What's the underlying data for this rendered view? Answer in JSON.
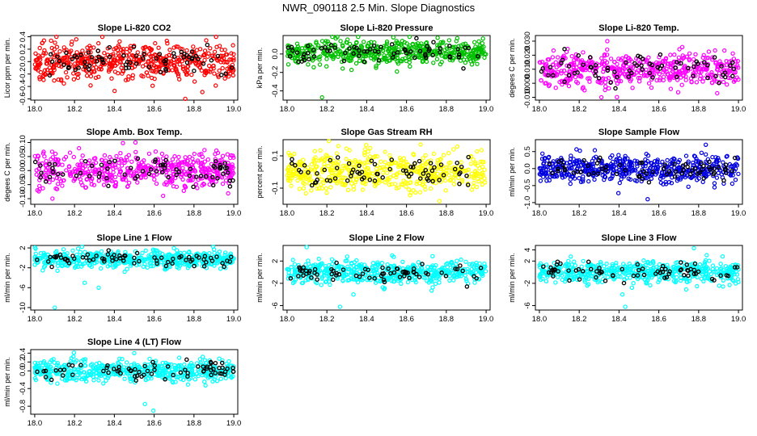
{
  "figure": {
    "title": "NWR_090118  2.5 Min. Slope Diagnostics"
  },
  "chart_data": [
    {
      "type": "scatter",
      "title": "Slope Li-820 CO2",
      "ylabel": "Licor ppm per min.",
      "color": "#ff0000",
      "xlim": [
        17.98,
        19.02
      ],
      "ylim": [
        -0.62,
        0.42
      ],
      "xticks": [
        "18.0",
        "18.2",
        "18.4",
        "18.6",
        "18.8",
        "19.0"
      ],
      "yticks": [
        "-0.6",
        "-0.4",
        "-0.2",
        "0.0",
        "0.2",
        "0.4"
      ],
      "center": 0.0,
      "spread": 0.14,
      "outliers": [
        0.4,
        -0.6
      ]
    },
    {
      "type": "scatter",
      "title": "Slope Li-820 Pressure",
      "ylabel": "kPa per min.",
      "color": "#00c000",
      "xlim": [
        17.98,
        19.02
      ],
      "ylim": [
        -0.5,
        0.2
      ],
      "xticks": [
        "18.0",
        "18.2",
        "18.4",
        "18.6",
        "18.8",
        "19.0"
      ],
      "yticks": [
        "-0.4",
        "-0.2",
        "0.0"
      ],
      "center": 0.02,
      "spread": 0.07,
      "outliers": [
        -0.47,
        0.18
      ]
    },
    {
      "type": "scatter",
      "title": "Slope Li-820 Temp.",
      "ylabel": "degees C per min.",
      "color": "#ff00ff",
      "xlim": [
        17.98,
        19.02
      ],
      "ylim": [
        -0.012,
        0.034
      ],
      "xticks": [
        "18.0",
        "18.2",
        "18.4",
        "18.6",
        "18.8",
        "19.0"
      ],
      "yticks": [
        "-0.010",
        "0.000",
        "0.010",
        "0.020",
        "0.030"
      ],
      "center": 0.01,
      "spread": 0.006,
      "outliers": [
        0.03,
        -0.01
      ]
    },
    {
      "type": "scatter",
      "title": "Slope Amb. Box Temp.",
      "ylabel": "degees C per min.",
      "color": "#ff00ff",
      "xlim": [
        17.98,
        19.02
      ],
      "ylim": [
        -0.12,
        0.11
      ],
      "xticks": [
        "18.0",
        "18.2",
        "18.4",
        "18.6",
        "18.8",
        "19.0"
      ],
      "yticks": [
        "-0.10",
        "-0.05",
        "0.00",
        "0.05",
        "0.10"
      ],
      "center": 0.0,
      "spread": 0.03,
      "outliers": [
        0.1,
        -0.1
      ]
    },
    {
      "type": "scatter",
      "title": "Slope Gas Stream RH",
      "ylabel": "percent per min.",
      "color": "#ffff00",
      "xlim": [
        17.98,
        19.02
      ],
      "ylim": [
        -0.2,
        0.2
      ],
      "xticks": [
        "18.0",
        "18.2",
        "18.4",
        "18.6",
        "18.8",
        "19.0"
      ],
      "yticks": [
        "-0.1",
        "0.1"
      ],
      "center": 0.0,
      "spread": 0.06,
      "outliers": [
        0.17,
        -0.18
      ]
    },
    {
      "type": "scatter",
      "title": "Slope Sample Flow",
      "ylabel": "ml/min per min.",
      "color": "#0000e0",
      "xlim": [
        17.98,
        19.02
      ],
      "ylim": [
        -1.05,
        0.85
      ],
      "xticks": [
        "18.0",
        "18.2",
        "18.4",
        "18.6",
        "18.8",
        "19.0"
      ],
      "yticks": [
        "-1.0",
        "-0.5",
        "0.0",
        "0.5"
      ],
      "center": 0.0,
      "spread": 0.2,
      "outliers": [
        0.7,
        -0.9
      ]
    },
    {
      "type": "scatter",
      "title": "Slope Line 1 Flow",
      "ylabel": "ml/min per min.",
      "color": "#00ffff",
      "xlim": [
        17.98,
        19.02
      ],
      "ylim": [
        -10.5,
        2.5
      ],
      "xticks": [
        "18.0",
        "18.2",
        "18.4",
        "18.6",
        "18.8",
        "19.0"
      ],
      "yticks": [
        "-10",
        "-6",
        "-2",
        "2"
      ],
      "center": -0.3,
      "spread": 0.8,
      "outliers": [
        -10,
        -6,
        -5
      ]
    },
    {
      "type": "scatter",
      "title": "Slope Line 2 Flow",
      "ylabel": "ml/min per min.",
      "color": "#00ffff",
      "xlim": [
        17.98,
        19.02
      ],
      "ylim": [
        -6.8,
        4.8
      ],
      "xticks": [
        "18.0",
        "18.2",
        "18.4",
        "18.6",
        "18.8",
        "19.0"
      ],
      "yticks": [
        "-6",
        "-2",
        "2"
      ],
      "center": 0.0,
      "spread": 1.0,
      "outliers": [
        -6.2,
        4.5,
        -4
      ]
    },
    {
      "type": "scatter",
      "title": "Slope Line 3 Flow",
      "ylabel": "ml/min per min.",
      "color": "#00ffff",
      "xlim": [
        17.98,
        19.02
      ],
      "ylim": [
        -6.8,
        4.8
      ],
      "xticks": [
        "18.0",
        "18.2",
        "18.4",
        "18.6",
        "18.8",
        "19.0"
      ],
      "yticks": [
        "-6",
        "-2",
        "2",
        "4"
      ],
      "center": 0.0,
      "spread": 1.0,
      "outliers": [
        -6.2,
        4.3,
        -4
      ]
    },
    {
      "type": "scatter",
      "title": "Slope Line 4 (LT) Flow",
      "ylabel": "ml/min per min.",
      "color": "#00ffff",
      "xlim": [
        17.98,
        19.02
      ],
      "ylim": [
        -0.98,
        0.48
      ],
      "xticks": [
        "18.0",
        "18.2",
        "18.4",
        "18.6",
        "18.8",
        "19.0"
      ],
      "yticks": [
        "-0.8",
        "-0.4",
        "0.0",
        "0.2",
        "0.4"
      ],
      "center": 0.0,
      "spread": 0.12,
      "outliers": [
        -0.9,
        -0.75,
        0.4
      ]
    }
  ]
}
